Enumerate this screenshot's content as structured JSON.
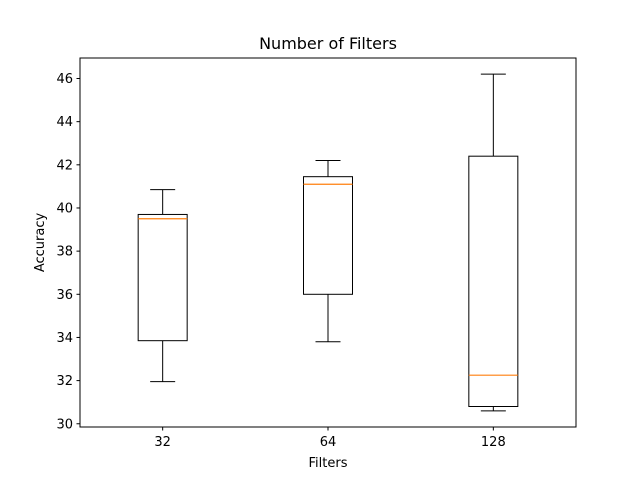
{
  "colors": {
    "box_edge": "#000000",
    "median": "#ff7f0e",
    "background": "#ffffff"
  },
  "chart_data": {
    "type": "boxplot",
    "title": "Number of Filters",
    "xlabel": "Filters",
    "ylabel": "Accuracy",
    "categories": [
      "32",
      "64",
      "128"
    ],
    "ylim": [
      29.85,
      46.95
    ],
    "yticks": [
      30,
      32,
      34,
      36,
      38,
      40,
      42,
      44,
      46
    ],
    "ytick_labels": [
      "30",
      "32",
      "34",
      "36",
      "38",
      "40",
      "42",
      "44",
      "46"
    ],
    "boxes": [
      {
        "label": "32",
        "whisker_low": 31.95,
        "q1": 33.85,
        "median": 39.5,
        "q3": 39.7,
        "whisker_high": 40.85
      },
      {
        "label": "64",
        "whisker_low": 33.8,
        "q1": 36.0,
        "median": 41.1,
        "q3": 41.45,
        "whisker_high": 42.2
      },
      {
        "label": "128",
        "whisker_low": 30.6,
        "q1": 30.8,
        "median": 32.25,
        "q3": 42.4,
        "whisker_high": 46.2
      }
    ],
    "grid": false,
    "legend": null
  }
}
